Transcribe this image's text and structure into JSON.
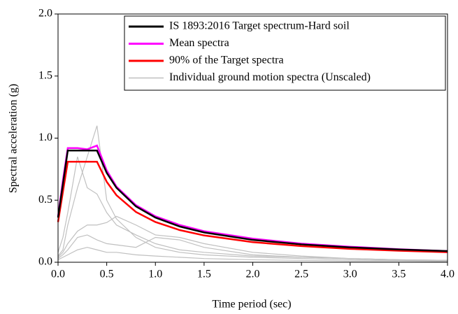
{
  "chart_data": {
    "type": "line",
    "xlabel": "Time period (sec)",
    "ylabel": "Spectral acceleration (g)",
    "x": [
      0,
      0.05,
      0.1,
      0.2,
      0.3,
      0.4,
      0.5,
      0.6,
      0.8,
      1.0,
      1.25,
      1.5,
      2.0,
      2.5,
      3.0,
      3.5,
      4.0
    ],
    "series": [
      {
        "name": "IS 1893:2016 Target spectrum-Hard soil",
        "color": "#000000",
        "values": [
          0.36,
          0.63,
          0.9,
          0.9,
          0.9,
          0.9,
          0.72,
          0.6,
          0.45,
          0.36,
          0.288,
          0.24,
          0.18,
          0.144,
          0.12,
          0.103,
          0.09
        ]
      },
      {
        "name": "Mean spectra",
        "color": "#ff00ff",
        "values": [
          0.37,
          0.66,
          0.92,
          0.92,
          0.91,
          0.94,
          0.74,
          0.61,
          0.46,
          0.37,
          0.3,
          0.25,
          0.19,
          0.15,
          0.125,
          0.105,
          0.09
        ]
      },
      {
        "name": "90% of the Target spectra",
        "color": "#ff0000",
        "values": [
          0.324,
          0.567,
          0.81,
          0.81,
          0.81,
          0.81,
          0.648,
          0.54,
          0.405,
          0.324,
          0.259,
          0.216,
          0.162,
          0.13,
          0.108,
          0.093,
          0.081
        ]
      },
      {
        "name": "Individual ground motion spectra (Unscaled)",
        "color": "#c0c0c0",
        "values": [
          0.05,
          0.1,
          0.3,
          0.6,
          0.85,
          1.1,
          0.5,
          0.35,
          0.2,
          0.12,
          0.08,
          0.06,
          0.04,
          0.03,
          0.02,
          0.015,
          0.01
        ]
      },
      {
        "color": "#c0c0c0",
        "values": [
          0.08,
          0.2,
          0.4,
          0.85,
          0.6,
          0.55,
          0.4,
          0.3,
          0.22,
          0.15,
          0.1,
          0.08,
          0.05,
          0.04,
          0.03,
          0.02,
          0.015
        ]
      },
      {
        "color": "#c0c0c0",
        "values": [
          0.04,
          0.08,
          0.15,
          0.25,
          0.3,
          0.3,
          0.32,
          0.37,
          0.3,
          0.22,
          0.2,
          0.15,
          0.08,
          0.05,
          0.03,
          0.02,
          0.015
        ]
      },
      {
        "color": "#c0c0c0",
        "values": [
          0.03,
          0.06,
          0.1,
          0.2,
          0.22,
          0.18,
          0.15,
          0.14,
          0.12,
          0.2,
          0.18,
          0.12,
          0.06,
          0.04,
          0.03,
          0.02,
          0.015
        ]
      },
      {
        "color": "#c0c0c0",
        "values": [
          0.02,
          0.04,
          0.06,
          0.1,
          0.12,
          0.1,
          0.08,
          0.08,
          0.06,
          0.05,
          0.04,
          0.03,
          0.02,
          0.015,
          0.01,
          0.01,
          0.005
        ]
      }
    ],
    "xlim": [
      0,
      4
    ],
    "ylim": [
      0,
      2
    ],
    "xticks": [
      {
        "value": 0,
        "label": "0.0"
      },
      {
        "value": 0.5,
        "label": "0.5"
      },
      {
        "value": 1,
        "label": "1.0"
      },
      {
        "value": 1.5,
        "label": "1.5"
      },
      {
        "value": 2,
        "label": "2.0"
      },
      {
        "value": 2.5,
        "label": "2.5"
      },
      {
        "value": 3,
        "label": "3.0"
      },
      {
        "value": 3.5,
        "label": "3.5"
      },
      {
        "value": 4,
        "label": "4.0"
      }
    ],
    "yticks": [
      {
        "value": 0,
        "label": "0.0"
      },
      {
        "value": 0.5,
        "label": "0.5"
      },
      {
        "value": 1,
        "label": "1.0"
      },
      {
        "value": 1.5,
        "label": "1.5"
      },
      {
        "value": 2,
        "label": "2.0"
      }
    ],
    "legend": "upper right"
  }
}
